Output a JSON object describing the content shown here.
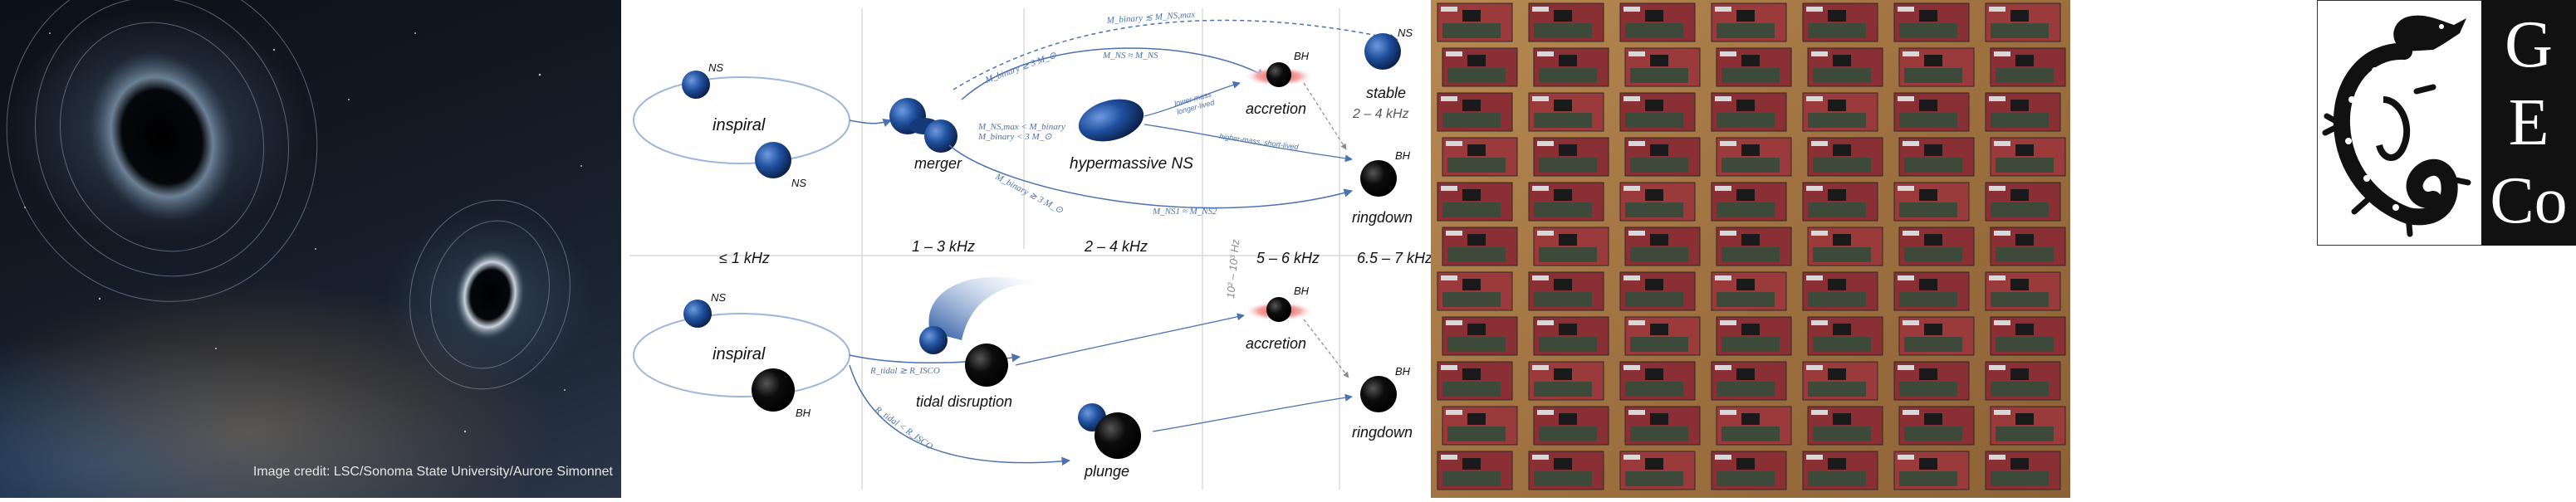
{
  "space": {
    "credit": "Image credit: LSC/Sonoma State University/Aurore Simonnet"
  },
  "diagram": {
    "top": {
      "ns_a": "NS",
      "ns_b": "NS",
      "inspiral": "inspiral",
      "merger": "merger",
      "hypermassive": "hypermassive NS",
      "accretion": "accretion",
      "bh_acc": "BH",
      "stable": "stable",
      "stable_ns": "NS",
      "stable_freq": "2 – 4 kHz",
      "ringdown": "ringdown",
      "bh_ring": "BH",
      "cond_top_dashed": "M_binary ≲ M_NS,max",
      "cond_upper_arc": "M_binary ≳ 3 M_⊙",
      "cond_upper_arc2": "M_NS ≈ M_NS",
      "cond_mid1": "M_NS,max < M_binary",
      "cond_mid2": "M_binary < 3 M_⊙",
      "cond_lower": "M_binary ≳ 3 M_⊙",
      "cond_lower2": "M_NS1 ≈ M_NS2",
      "small_lower_mass": "lower-mass",
      "small_longer_lived": "longer-lived",
      "small_higher_mass": "higher-mass, short-lived"
    },
    "freq": {
      "f1": "≤ 1 kHz",
      "f2": "1 – 3 kHz",
      "f3": "2 – 4 kHz",
      "f4": "5 – 6 kHz",
      "f5": "6.5 – 7 kHz",
      "rotated": "10² – 10³ Hz"
    },
    "bottom": {
      "ns": "NS",
      "inspiral": "inspiral",
      "bh_in": "BH",
      "tidal": "tidal disruption",
      "accretion": "accretion",
      "bh_acc": "BH",
      "plunge": "plunge",
      "ringdown": "ringdown",
      "bh_ring": "BH",
      "cond_tidal": "R_tidal ≳ R_ISCO",
      "cond_plunge": "R_tidal < R_ISCO"
    }
  },
  "logo": {
    "letters": [
      "G",
      "E",
      "Co"
    ]
  }
}
